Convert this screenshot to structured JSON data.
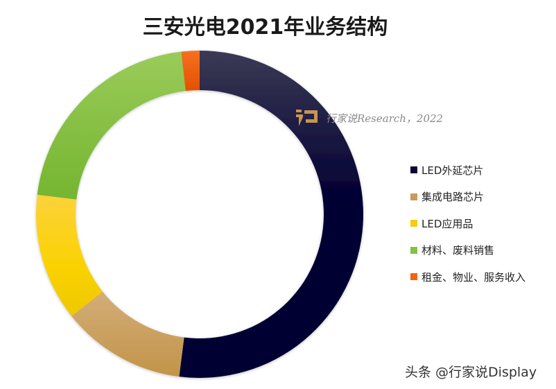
{
  "title": "三安光电2021年业务结构",
  "watermark": {
    "text": "行家说Research，2022",
    "logo": "hangjiashuo-logo-icon"
  },
  "footer": "头条 @行家说Display",
  "chart_data": {
    "type": "pie",
    "variant": "donut",
    "title": "三安光电2021年业务结构",
    "categories": [
      "LED外延芯片",
      "集成电路芯片",
      "LED应用品",
      "材料、废料销售",
      "租金、物业、服务收入"
    ],
    "values": [
      52.0,
      12.3,
      12.6,
      21.3,
      1.8
    ],
    "unit": "%",
    "colors": [
      "#0a0833",
      "#c89a5a",
      "#f5cc10",
      "#86c046",
      "#f26410"
    ],
    "start_angle_deg": 0,
    "direction": "clockwise",
    "legend_position": "right",
    "data_labels": false
  },
  "legend": [
    {
      "label": "LED外延芯片",
      "color": "#0a0833"
    },
    {
      "label": "集成电路芯片",
      "color": "#c89a5a"
    },
    {
      "label": "LED应用品",
      "color": "#f5cc10"
    },
    {
      "label": "材料、废料销售",
      "color": "#86c046"
    },
    {
      "label": "租金、物业、服务收入",
      "color": "#f26410"
    }
  ]
}
